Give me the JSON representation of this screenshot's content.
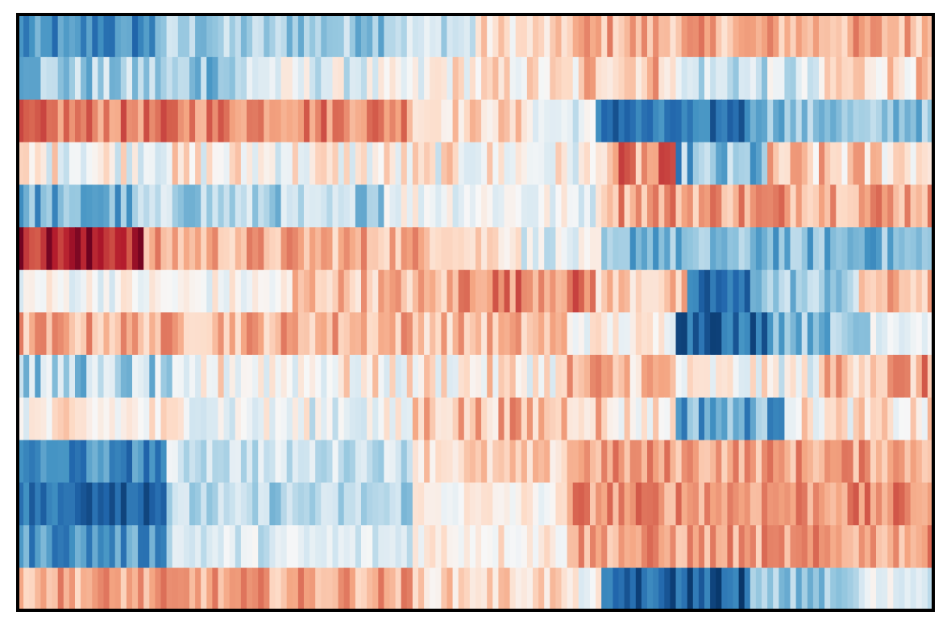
{
  "colors": {
    "frame": "#000000",
    "background": "#ffffff",
    "colormap": [
      "#053061",
      "#2166ac",
      "#4393c3",
      "#92c5de",
      "#d1e5f0",
      "#f7f7f7",
      "#fddbc7",
      "#f4a582",
      "#d6604d",
      "#b2182b",
      "#67001f"
    ]
  },
  "chart_data": {
    "type": "heatmap",
    "title": "",
    "xlabel": "",
    "ylabel": "",
    "colormap": "RdBu_r",
    "value_range": [
      -1,
      1
    ],
    "axes_visible": false,
    "n_rows": 14,
    "n_cols": 160,
    "rows": [
      {
        "segments": [
          {
            "to": 0.15,
            "value": -0.65
          },
          {
            "to": 0.4,
            "value": -0.35
          },
          {
            "to": 0.5,
            "value": -0.2
          },
          {
            "to": 0.6,
            "value": 0.15
          },
          {
            "to": 1.0,
            "value": 0.35
          }
        ],
        "noise": 0.2
      },
      {
        "segments": [
          {
            "to": 0.25,
            "value": -0.35
          },
          {
            "to": 0.45,
            "value": -0.1
          },
          {
            "to": 0.62,
            "value": 0.1
          },
          {
            "to": 0.72,
            "value": 0.3
          },
          {
            "to": 0.88,
            "value": -0.2
          },
          {
            "to": 1.0,
            "value": 0.2
          }
        ],
        "noise": 0.25
      },
      {
        "segments": [
          {
            "to": 0.43,
            "value": 0.5
          },
          {
            "to": 0.56,
            "value": 0.2
          },
          {
            "to": 0.63,
            "value": -0.1
          },
          {
            "to": 0.8,
            "value": -0.75
          },
          {
            "to": 1.0,
            "value": -0.4
          }
        ],
        "noise": 0.18
      },
      {
        "segments": [
          {
            "to": 0.55,
            "value": 0.05
          },
          {
            "to": 0.64,
            "value": 0.0
          },
          {
            "to": 0.72,
            "value": 0.4
          },
          {
            "to": 0.82,
            "value": -0.45
          },
          {
            "to": 1.0,
            "value": 0.2
          }
        ],
        "noise": 0.3
      },
      {
        "segments": [
          {
            "to": 0.13,
            "value": -0.5
          },
          {
            "to": 0.4,
            "value": -0.3
          },
          {
            "to": 0.55,
            "value": 0.0
          },
          {
            "to": 0.64,
            "value": -0.05
          },
          {
            "to": 1.0,
            "value": 0.42
          }
        ],
        "noise": 0.22
      },
      {
        "segments": [
          {
            "to": 0.14,
            "value": 0.8
          },
          {
            "to": 0.48,
            "value": 0.35
          },
          {
            "to": 0.55,
            "value": 0.2
          },
          {
            "to": 0.64,
            "value": -0.1
          },
          {
            "to": 1.0,
            "value": -0.45
          }
        ],
        "noise": 0.2
      },
      {
        "segments": [
          {
            "to": 0.3,
            "value": 0.0
          },
          {
            "to": 0.48,
            "value": 0.3
          },
          {
            "to": 0.63,
            "value": 0.5
          },
          {
            "to": 0.73,
            "value": 0.25
          },
          {
            "to": 0.8,
            "value": -0.8
          },
          {
            "to": 0.92,
            "value": -0.35
          },
          {
            "to": 1.0,
            "value": 0.3
          }
        ],
        "noise": 0.2
      },
      {
        "segments": [
          {
            "to": 0.43,
            "value": 0.35
          },
          {
            "to": 0.6,
            "value": 0.3
          },
          {
            "to": 0.72,
            "value": 0.05
          },
          {
            "to": 0.82,
            "value": -0.75
          },
          {
            "to": 0.93,
            "value": -0.4
          },
          {
            "to": 1.0,
            "value": 0.0
          }
        ],
        "noise": 0.2
      },
      {
        "segments": [
          {
            "to": 0.2,
            "value": -0.3
          },
          {
            "to": 0.43,
            "value": 0.05
          },
          {
            "to": 0.6,
            "value": 0.1
          },
          {
            "to": 0.72,
            "value": 0.3
          },
          {
            "to": 0.88,
            "value": 0.0
          },
          {
            "to": 1.0,
            "value": 0.35
          }
        ],
        "noise": 0.28
      },
      {
        "segments": [
          {
            "to": 0.2,
            "value": 0.05
          },
          {
            "to": 0.43,
            "value": -0.05
          },
          {
            "to": 0.64,
            "value": 0.3
          },
          {
            "to": 0.72,
            "value": 0.1
          },
          {
            "to": 0.84,
            "value": -0.5
          },
          {
            "to": 1.0,
            "value": 0.1
          }
        ],
        "noise": 0.25
      },
      {
        "segments": [
          {
            "to": 0.16,
            "value": -0.65
          },
          {
            "to": 0.43,
            "value": -0.2
          },
          {
            "to": 0.6,
            "value": 0.2
          },
          {
            "to": 1.0,
            "value": 0.4
          }
        ],
        "noise": 0.18
      },
      {
        "segments": [
          {
            "to": 0.16,
            "value": -0.75
          },
          {
            "to": 0.43,
            "value": -0.3
          },
          {
            "to": 0.6,
            "value": 0.05
          },
          {
            "to": 1.0,
            "value": 0.45
          }
        ],
        "noise": 0.18
      },
      {
        "segments": [
          {
            "to": 0.16,
            "value": -0.6
          },
          {
            "to": 0.43,
            "value": -0.15
          },
          {
            "to": 0.6,
            "value": 0.1
          },
          {
            "to": 1.0,
            "value": 0.4
          }
        ],
        "noise": 0.18
      },
      {
        "segments": [
          {
            "to": 0.43,
            "value": 0.38
          },
          {
            "to": 0.6,
            "value": 0.2
          },
          {
            "to": 0.64,
            "value": 0.0
          },
          {
            "to": 0.8,
            "value": -0.8
          },
          {
            "to": 0.92,
            "value": -0.4
          },
          {
            "to": 1.0,
            "value": -0.1
          }
        ],
        "noise": 0.18
      }
    ]
  }
}
